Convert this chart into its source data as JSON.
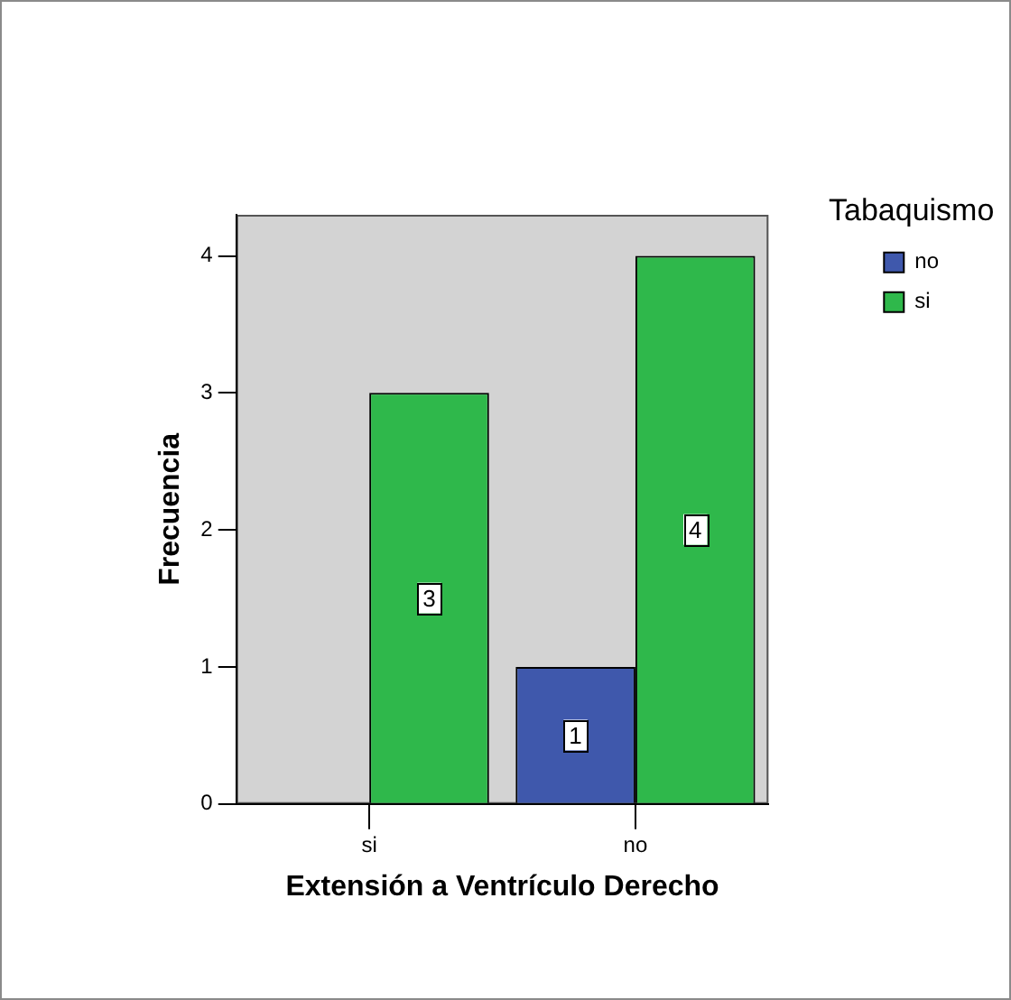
{
  "chart_data": {
    "type": "bar",
    "xlabel": "Extensión a Ventrículo Derecho",
    "ylabel": "Frecuencia",
    "legend_title": "Tabaquismo",
    "categories": [
      "si",
      "no"
    ],
    "series": [
      {
        "name": "no",
        "color": "#3f58ac",
        "values": [
          null,
          1
        ]
      },
      {
        "name": "si",
        "color": "#2fb84b",
        "values": [
          3,
          4
        ]
      }
    ],
    "ylim": [
      0,
      4.3
    ],
    "yticks": [
      0,
      1,
      2,
      3,
      4
    ],
    "grid": false,
    "legend": "top right",
    "data_labels": true
  }
}
